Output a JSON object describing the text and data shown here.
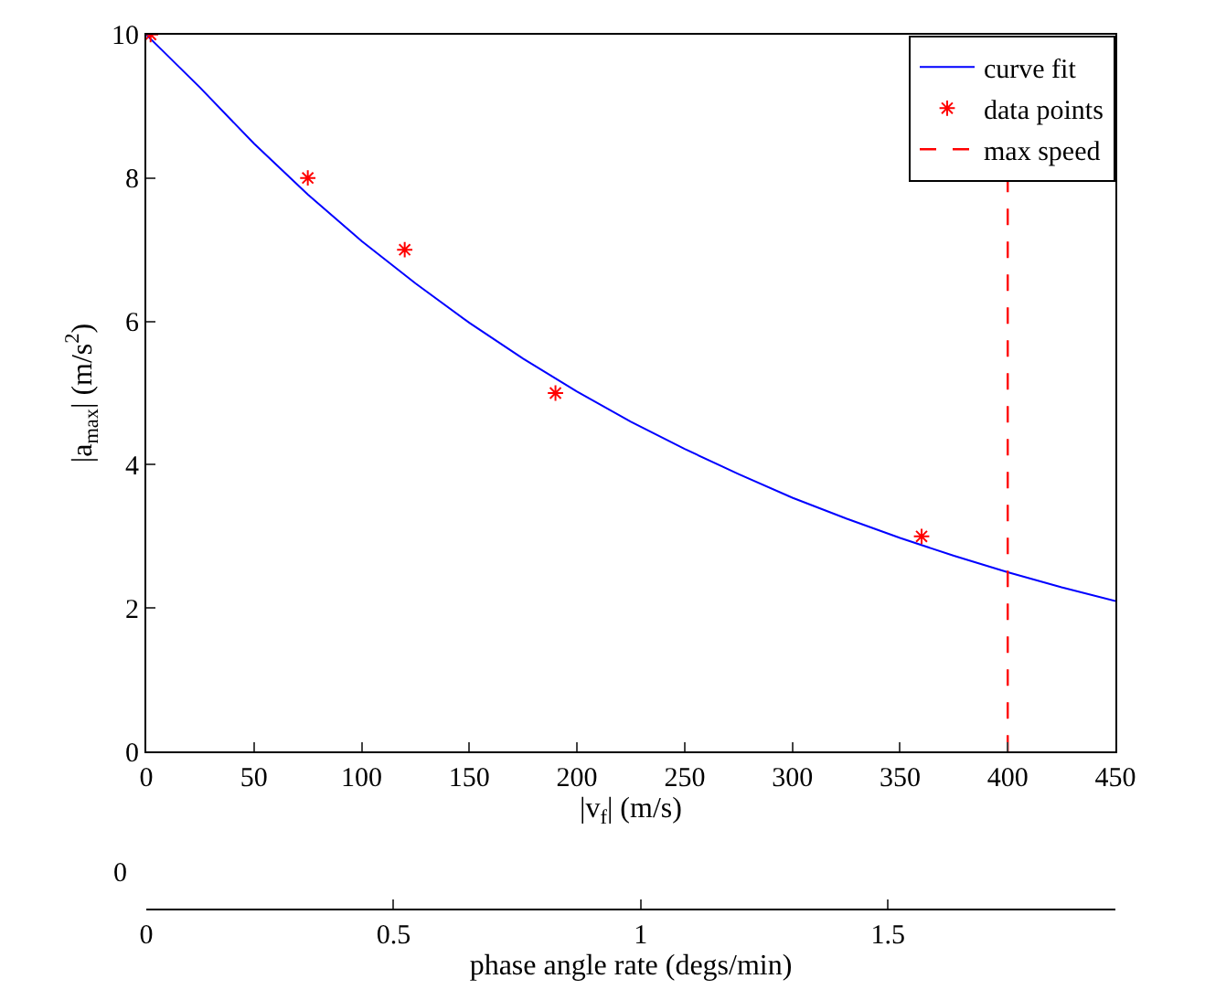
{
  "chart_data": {
    "type": "line",
    "xlabel": "|v$_{f}$| (m/s)",
    "ylabel": "|a$_{max}$| (m/s$^{2}$)",
    "x2label": "phase angle rate (degs/min)",
    "xlim": [
      0,
      450
    ],
    "xticks": [
      0,
      50,
      100,
      150,
      200,
      250,
      300,
      350,
      400,
      450
    ],
    "ylim": [
      0,
      10
    ],
    "yticks": [
      0,
      2,
      4,
      6,
      8,
      10
    ],
    "x2lim": [
      0,
      1.96
    ],
    "x2ticks": [
      0,
      0.5,
      1,
      1.5
    ],
    "series": [
      {
        "name": "curve fit",
        "color": "#0000ff",
        "marker": "none",
        "line_style": "solid",
        "x": [
          0,
          25,
          50,
          75,
          100,
          125,
          150,
          175,
          200,
          225,
          250,
          275,
          300,
          325,
          350,
          375,
          400,
          425,
          450
        ],
        "values": [
          10,
          9.26,
          8.48,
          7.77,
          7.12,
          6.53,
          5.98,
          5.48,
          5.02,
          4.6,
          4.22,
          3.87,
          3.54,
          3.25,
          2.98,
          2.73,
          2.5,
          2.29,
          2.1
        ]
      },
      {
        "name": "data points",
        "type": "scatter",
        "color": "#ff0000",
        "marker": "cross",
        "x": [
          2,
          75,
          120,
          190,
          360
        ],
        "values": [
          10,
          8,
          7,
          5,
          3
        ]
      }
    ],
    "ref_lines": [
      {
        "axis": "x",
        "value": 400,
        "label": "max speed",
        "color": "#ff0000",
        "line_style": "dashed"
      }
    ],
    "annotations": [
      "0"
    ],
    "legend": "top right"
  }
}
